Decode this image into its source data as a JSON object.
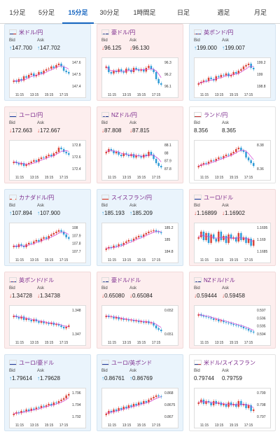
{
  "tabs": [
    {
      "label": "1分足",
      "active": false
    },
    {
      "label": "5分足",
      "active": false
    },
    {
      "label": "15分足",
      "active": true
    },
    {
      "label": "30分足",
      "active": false
    },
    {
      "label": "1時間足",
      "active": false
    },
    {
      "label": "日足",
      "active": false
    },
    {
      "label": "週足",
      "active": false
    },
    {
      "label": "月足",
      "active": false
    }
  ],
  "labels": {
    "bid": "Bid",
    "ask": "Ask"
  },
  "colors": {
    "up": "#2e9bd6",
    "down": "#d9463a",
    "ma": "#d63fd6",
    "title": "#7b2a8c",
    "active_tab": "#1565c0"
  },
  "x_ticks": [
    "11:15",
    "13:15",
    "15:15",
    "17:15"
  ],
  "pairs": [
    {
      "name": "米ドル/円",
      "flag": "us",
      "trend": "up",
      "bid": "147.700",
      "ask": "147.702",
      "y_ticks": [
        "147.6",
        "147.5",
        "147.4"
      ],
      "shape": [
        0.3,
        0.25,
        0.35,
        0.3,
        0.45,
        0.4,
        0.5,
        0.55,
        0.45,
        0.5,
        0.6,
        0.55,
        0.65,
        0.7,
        0.72,
        0.8,
        0.75,
        0.85,
        0.9,
        0.8,
        0.65,
        0.6,
        0.55
      ]
    },
    {
      "name": "豪ドル/円",
      "flag": "au",
      "trend": "down",
      "bid": "96.125",
      "ask": "96.130",
      "y_ticks": [
        "96.3",
        "96.2",
        "96.1"
      ],
      "shape": [
        0.8,
        0.6,
        0.55,
        0.65,
        0.6,
        0.7,
        0.62,
        0.58,
        0.72,
        0.68,
        0.6,
        0.75,
        0.7,
        0.65,
        0.7,
        0.62,
        0.75,
        0.82,
        0.7,
        0.6,
        0.35,
        0.2,
        0.15
      ]
    },
    {
      "name": "英ポンド/円",
      "flag": "gb",
      "trend": "up",
      "bid": "199.000",
      "ask": "199.007",
      "y_ticks": [
        "199.2",
        "199",
        "198.8"
      ],
      "shape": [
        0.2,
        0.25,
        0.3,
        0.28,
        0.4,
        0.35,
        0.3,
        0.45,
        0.42,
        0.5,
        0.48,
        0.55,
        0.45,
        0.5,
        0.6,
        0.55,
        0.65,
        0.7,
        0.8,
        0.85,
        0.9,
        0.75,
        0.7
      ]
    },
    {
      "name": "ユーロ/円",
      "flag": "eu",
      "trend": "down",
      "bid": "172.663",
      "ask": "172.667",
      "y_ticks": [
        "172.8",
        "172.6",
        "172.4"
      ],
      "shape": [
        0.35,
        0.3,
        0.25,
        0.3,
        0.2,
        0.25,
        0.3,
        0.35,
        0.4,
        0.35,
        0.45,
        0.5,
        0.48,
        0.55,
        0.6,
        0.55,
        0.65,
        0.7,
        0.85,
        0.8,
        0.7,
        0.65,
        0.6
      ]
    },
    {
      "name": "NZドル/円",
      "flag": "nz",
      "trend": "down",
      "bid": "87.808",
      "ask": "87.815",
      "y_ticks": [
        "88.1",
        "88",
        "87.9",
        "87.8"
      ],
      "shape": [
        0.7,
        0.8,
        0.75,
        0.65,
        0.7,
        0.6,
        0.55,
        0.65,
        0.6,
        0.55,
        0.62,
        0.5,
        0.58,
        0.55,
        0.5,
        0.6,
        0.55,
        0.7,
        0.6,
        0.45,
        0.3,
        0.2,
        0.15
      ]
    },
    {
      "name": "ランド/円",
      "flag": "za",
      "trend": "flat",
      "bid": "8.356",
      "ask": "8.365",
      "y_ticks": [
        "8.38",
        "8.36"
      ],
      "shape": [
        0.2,
        0.25,
        0.3,
        0.28,
        0.35,
        0.4,
        0.38,
        0.45,
        0.5,
        0.48,
        0.55,
        0.6,
        0.58,
        0.65,
        0.7,
        0.8,
        0.85,
        0.75,
        0.7,
        0.5,
        0.4,
        0.3,
        0.2
      ]
    },
    {
      "name": "カナダドル/円",
      "flag": "ca",
      "trend": "up",
      "bid": "107.894",
      "ask": "107.900",
      "y_ticks": [
        "108",
        "107.9",
        "107.8",
        "107.7"
      ],
      "shape": [
        0.3,
        0.25,
        0.35,
        0.3,
        0.25,
        0.35,
        0.4,
        0.38,
        0.45,
        0.5,
        0.45,
        0.55,
        0.6,
        0.55,
        0.65,
        0.7,
        0.75,
        0.8,
        0.85,
        0.8,
        0.7,
        0.6,
        0.55
      ]
    },
    {
      "name": "スイスフラン/円",
      "flag": "ch",
      "trend": "up",
      "bid": "185.193",
      "ask": "185.209",
      "y_ticks": [
        "185.2",
        "185",
        "184.8"
      ],
      "shape": [
        0.2,
        0.25,
        0.22,
        0.3,
        0.28,
        0.35,
        0.32,
        0.4,
        0.45,
        0.5,
        0.48,
        0.55,
        0.6,
        0.65,
        0.62,
        0.7,
        0.75,
        0.8,
        0.82,
        0.85,
        0.8,
        0.78,
        0.75
      ]
    },
    {
      "name": "ユーロ/ドル",
      "flag": "eu",
      "trend": "down",
      "bid": "1.16899",
      "ask": "1.16902",
      "y_ticks": [
        "1.1695",
        "1.169",
        "1.1685"
      ],
      "shape": [
        0.6,
        0.8,
        0.5,
        0.75,
        0.4,
        0.7,
        0.55,
        0.45,
        0.8,
        0.5,
        0.65,
        0.4,
        0.7,
        0.55,
        0.6,
        0.45,
        0.75,
        0.5,
        0.6,
        0.4,
        0.55,
        0.3,
        0.5
      ]
    },
    {
      "name": "英ポンド/ドル",
      "flag": "gb",
      "trend": "down",
      "bid": "1.34728",
      "ask": "1.34738",
      "y_ticks": [
        "1.348",
        "1.347"
      ],
      "shape": [
        0.75,
        0.7,
        0.65,
        0.72,
        0.6,
        0.65,
        0.6,
        0.55,
        0.62,
        0.55,
        0.5,
        0.55,
        0.48,
        0.5,
        0.45,
        0.5,
        0.42,
        0.45,
        0.4,
        0.35,
        0.3,
        0.35,
        0.4
      ]
    },
    {
      "name": "豪ドル/ドル",
      "flag": "au",
      "trend": "down",
      "bid": "0.65080",
      "ask": "0.65084",
      "y_ticks": [
        "0.652",
        "0.651"
      ],
      "shape": [
        0.75,
        0.7,
        0.72,
        0.65,
        0.7,
        0.62,
        0.65,
        0.6,
        0.62,
        0.58,
        0.6,
        0.55,
        0.58,
        0.52,
        0.55,
        0.5,
        0.55,
        0.48,
        0.5,
        0.4,
        0.3,
        0.25,
        0.2
      ]
    },
    {
      "name": "NZドル/ドル",
      "flag": "nz",
      "trend": "down",
      "bid": "0.59444",
      "ask": "0.59458",
      "y_ticks": [
        "0.597",
        "0.596",
        "0.595",
        "0.594"
      ],
      "shape": [
        0.8,
        0.75,
        0.72,
        0.7,
        0.68,
        0.65,
        0.6,
        0.62,
        0.55,
        0.58,
        0.52,
        0.5,
        0.48,
        0.45,
        0.42,
        0.4,
        0.38,
        0.35,
        0.3,
        0.28,
        0.22,
        0.18,
        0.15
      ]
    },
    {
      "name": "ユーロ/豪ドル",
      "flag": "eu",
      "trend": "up",
      "bid": "1.79614",
      "ask": "1.79628",
      "y_ticks": [
        "1.796",
        "1.794",
        "1.792"
      ],
      "shape": [
        0.2,
        0.25,
        0.22,
        0.3,
        0.28,
        0.35,
        0.3,
        0.38,
        0.35,
        0.42,
        0.4,
        0.48,
        0.45,
        0.5,
        0.55,
        0.5,
        0.6,
        0.58,
        0.65,
        0.7,
        0.75,
        0.85,
        0.9
      ]
    },
    {
      "name": "ユーロ/英ポンド",
      "flag": "eu",
      "trend": "up",
      "bid": "0.86761",
      "ask": "0.86769",
      "y_ticks": [
        "0.868",
        "0.8675",
        "0.867"
      ],
      "shape": [
        0.2,
        0.3,
        0.25,
        0.35,
        0.3,
        0.4,
        0.35,
        0.45,
        0.4,
        0.5,
        0.45,
        0.55,
        0.5,
        0.6,
        0.55,
        0.65,
        0.6,
        0.7,
        0.75,
        0.8,
        0.85,
        0.82,
        0.8
      ]
    },
    {
      "name": "米ドル/スイスフラン",
      "flag": "us",
      "trend": "flat",
      "bid": "0.79744",
      "ask": "0.79759",
      "y_ticks": [
        "0.799",
        "0.798",
        "0.797"
      ],
      "shape": [
        0.6,
        0.7,
        0.55,
        0.65,
        0.6,
        0.5,
        0.65,
        0.55,
        0.6,
        0.5,
        0.55,
        0.45,
        0.6,
        0.5,
        0.55,
        0.45,
        0.65,
        0.5,
        0.55,
        0.4,
        0.5,
        0.3,
        0.35
      ]
    }
  ]
}
